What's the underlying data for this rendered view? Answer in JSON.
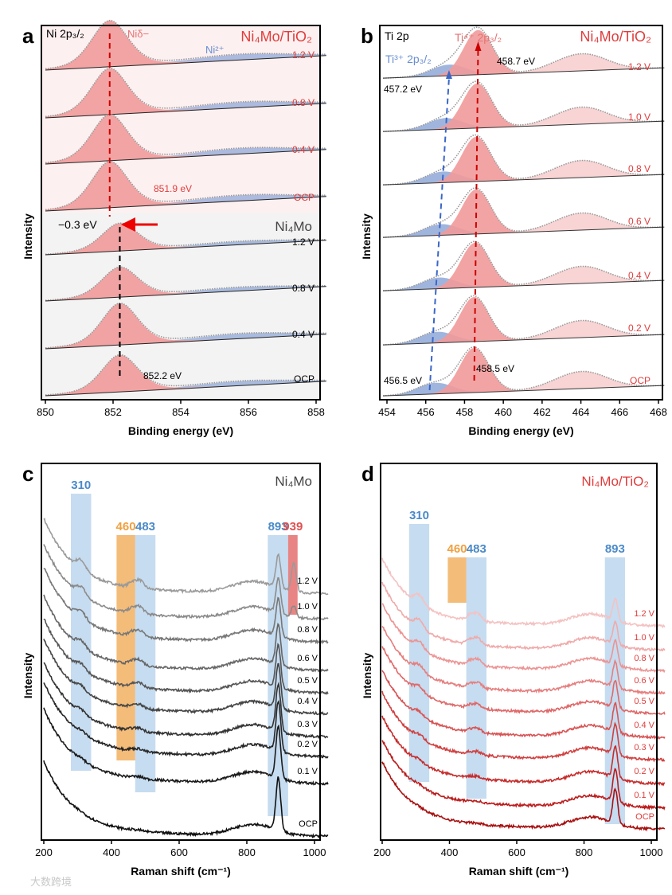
{
  "chart_data": [
    {
      "id": "a",
      "type": "line",
      "panel_label": "a",
      "title": "Ni 2p₃/₂",
      "xlabel": "Binding energy (eV)",
      "ylabel": "Intensity",
      "xlim": [
        850,
        858.3
      ],
      "xticks": [
        850,
        852,
        854,
        856,
        858
      ],
      "sample_top": "Ni₄Mo/TiO₂",
      "sample_bottom": "Ni₄Mo",
      "peak_labels": {
        "main": "Niδ−",
        "secondary": "Ni²⁺"
      },
      "annotations": {
        "top_energy": "851.9 eV",
        "bottom_energy": "852.2 eV",
        "shift": "−0.3 eV"
      },
      "series": [
        {
          "name": "1.2 V",
          "group": "Ni₄Mo/TiO₂",
          "peak_center": 851.9,
          "rel_height": 1.0
        },
        {
          "name": "0.8 V",
          "group": "Ni₄Mo/TiO₂",
          "peak_center": 851.9,
          "rel_height": 1.0
        },
        {
          "name": "0.4 V",
          "group": "Ni₄Mo/TiO₂",
          "peak_center": 851.9,
          "rel_height": 1.0
        },
        {
          "name": "OCP",
          "group": "Ni₄Mo/TiO₂",
          "peak_center": 851.9,
          "rel_height": 1.0
        },
        {
          "name": "1.2 V",
          "group": "Ni₄Mo",
          "peak_center": 852.2,
          "rel_height": 0.6
        },
        {
          "name": "0.8 V",
          "group": "Ni₄Mo",
          "peak_center": 852.2,
          "rel_height": 0.65
        },
        {
          "name": "0.4 V",
          "group": "Ni₄Mo",
          "peak_center": 852.2,
          "rel_height": 0.9
        },
        {
          "name": "OCP",
          "group": "Ni₄Mo",
          "peak_center": 852.2,
          "rel_height": 0.8
        }
      ]
    },
    {
      "id": "b",
      "type": "line",
      "panel_label": "b",
      "title": "Ti 2p",
      "xlabel": "Binding energy (eV)",
      "ylabel": "Intensity",
      "xlim": [
        453.8,
        468.3
      ],
      "xticks": [
        454,
        456,
        458,
        460,
        462,
        464,
        466,
        468
      ],
      "sample_top": "Ni₄Mo/TiO₂",
      "peak_labels": {
        "main": "Ti⁴⁺ 2p₃/₂",
        "secondary": "Ti³⁺ 2p₃/₂"
      },
      "annotations": {
        "ti4_top": "458.7 eV",
        "ti3_top": "457.2 eV",
        "ti4_bottom": "458.5 eV",
        "ti3_bottom": "456.5 eV"
      },
      "series": [
        {
          "name": "1.2 V",
          "ti4_center": 458.7,
          "ti3_center": 457.2
        },
        {
          "name": "1.0 V",
          "ti4_center": 458.65,
          "ti3_center": 457.0
        },
        {
          "name": "0.8 V",
          "ti4_center": 458.6,
          "ti3_center": 456.9
        },
        {
          "name": "0.6 V",
          "ti4_center": 458.6,
          "ti3_center": 456.8
        },
        {
          "name": "0.4 V",
          "ti4_center": 458.55,
          "ti3_center": 456.7
        },
        {
          "name": "0.2 V",
          "ti4_center": 458.5,
          "ti3_center": 456.6
        },
        {
          "name": "OCP",
          "ti4_center": 458.5,
          "ti3_center": 456.5
        }
      ]
    },
    {
      "id": "c",
      "type": "line",
      "panel_label": "c",
      "xlabel": "Raman shift (cm⁻¹)",
      "ylabel": "Intensity",
      "xlim": [
        200,
        1040
      ],
      "xticks": [
        200,
        400,
        600,
        800,
        1000
      ],
      "sample": "Ni₄Mo",
      "bands": [
        {
          "label": "310",
          "center": 310,
          "color": "#5b9bd5"
        },
        {
          "label": "460",
          "center": 460,
          "color": "#f0a040"
        },
        {
          "label": "483",
          "center": 483,
          "color": "#5b9bd5"
        },
        {
          "label": "893",
          "center": 893,
          "color": "#5b9bd5"
        },
        {
          "label": "939",
          "center": 939,
          "color": "#e05050"
        }
      ],
      "series": [
        "1.2 V",
        "1.0 V",
        "0.8 V",
        "0.6 V",
        "0.5 V",
        "0.4 V",
        "0.3 V",
        "0.2 V",
        "0.1 V",
        "OCP"
      ]
    },
    {
      "id": "d",
      "type": "line",
      "panel_label": "d",
      "xlabel": "Raman shift (cm⁻¹)",
      "ylabel": "Intensity",
      "xlim": [
        200,
        1040
      ],
      "xticks": [
        200,
        400,
        600,
        800,
        1000
      ],
      "sample": "Ni₄Mo/TiO₂",
      "bands": [
        {
          "label": "310",
          "center": 310,
          "color": "#5b9bd5"
        },
        {
          "label": "460",
          "center": 460,
          "color": "#f0a040"
        },
        {
          "label": "483",
          "center": 483,
          "color": "#5b9bd5"
        },
        {
          "label": "893",
          "center": 893,
          "color": "#5b9bd5"
        }
      ],
      "series": [
        "1.2 V",
        "1.0 V",
        "0.8 V",
        "0.6 V",
        "0.5 V",
        "0.4 V",
        "0.3 V",
        "0.2 V",
        "0.1 V",
        "OCP"
      ]
    }
  ],
  "colors": {
    "red": "#e03c3c",
    "pink_fill": "#f19a9a",
    "blue_fill": "#8fa8d8",
    "blue": "#3a66c8",
    "gray_text": "#555555"
  },
  "watermark": "大数跨境"
}
